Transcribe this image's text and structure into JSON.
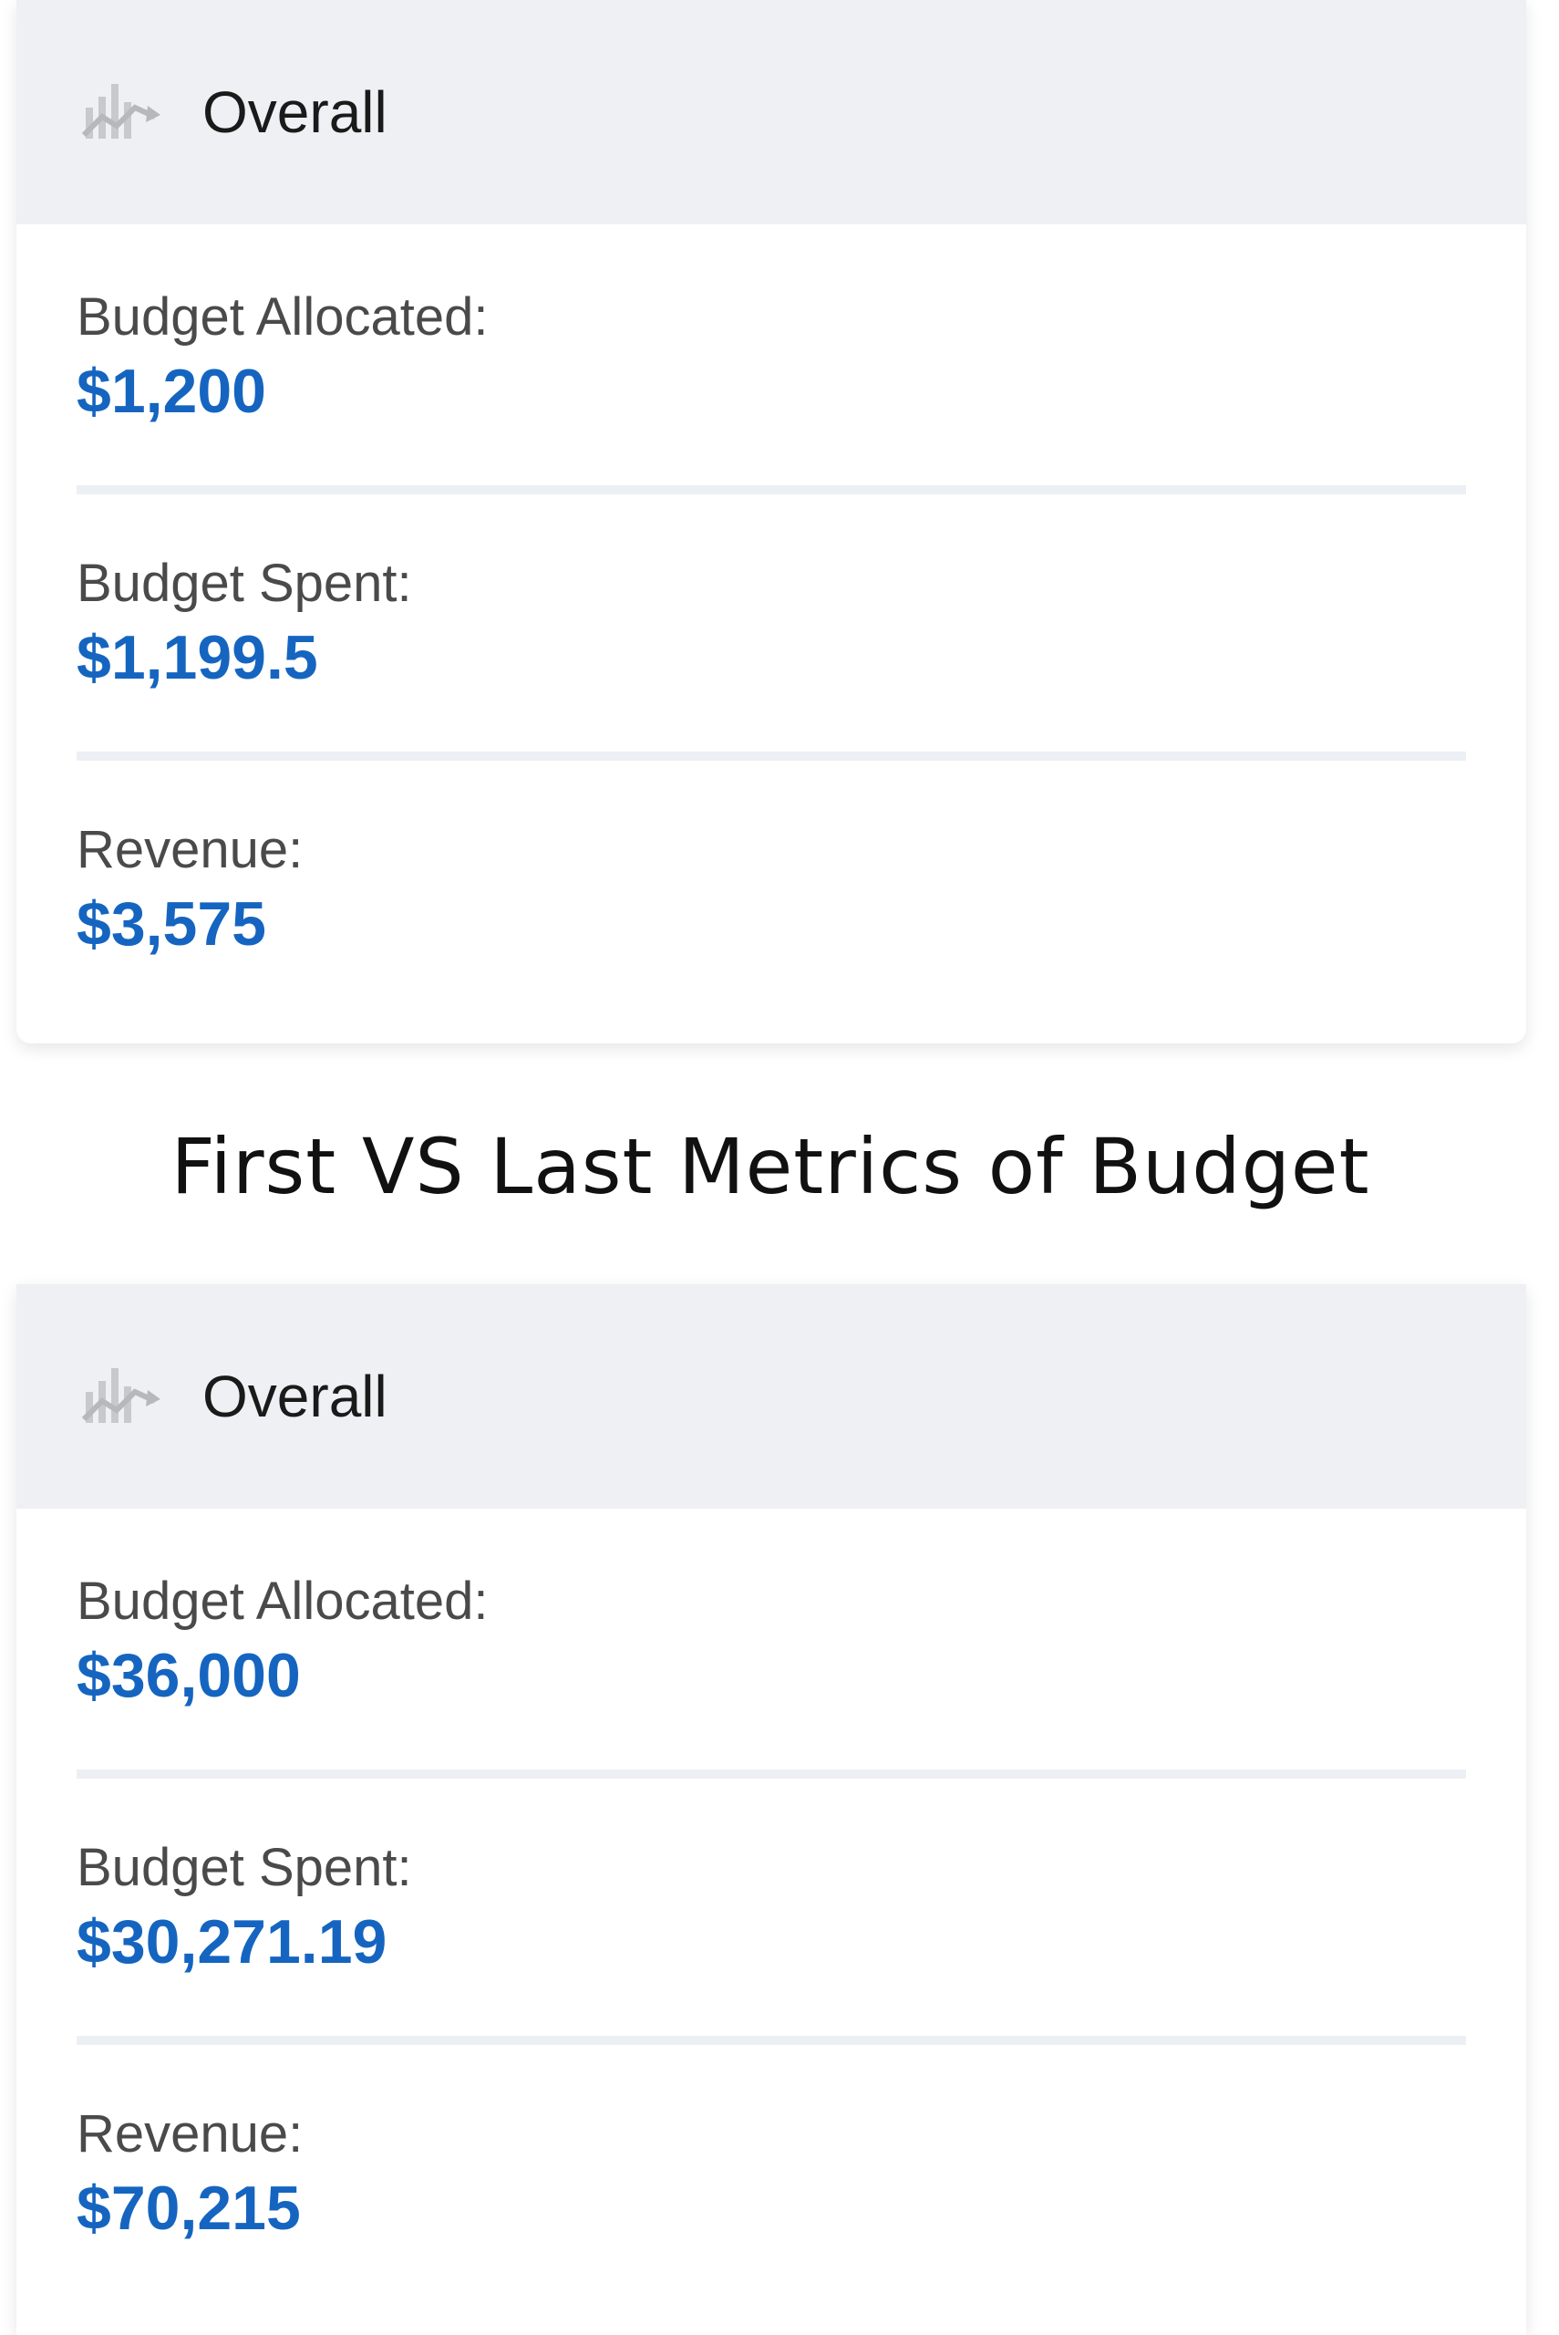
{
  "section_title": "First VS Last Metrics of Budget",
  "colors": {
    "value_blue": "#1565c0",
    "header_bg": "#eef0f3",
    "label_gray": "#4a4a4a"
  },
  "cards": [
    {
      "header": {
        "icon": "bar-chart-trend-icon",
        "title": "Overall"
      },
      "metrics": [
        {
          "label": "Budget Allocated:",
          "value": "$1,200"
        },
        {
          "label": "Budget Spent:",
          "value": "$1,199.5"
        },
        {
          "label": "Revenue:",
          "value": "$3,575"
        }
      ]
    },
    {
      "header": {
        "icon": "bar-chart-trend-icon",
        "title": "Overall"
      },
      "metrics": [
        {
          "label": "Budget Allocated:",
          "value": "$36,000"
        },
        {
          "label": "Budget Spent:",
          "value": "$30,271.19"
        },
        {
          "label": "Revenue:",
          "value": "$70,215"
        }
      ]
    }
  ]
}
